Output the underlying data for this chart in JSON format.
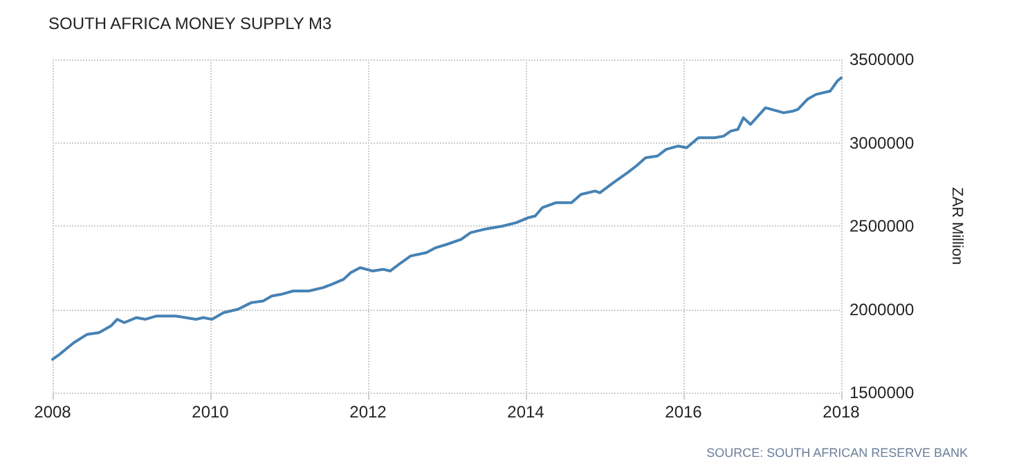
{
  "chart_data": {
    "type": "line",
    "title": "SOUTH AFRICA MONEY SUPPLY M3",
    "ylabel": "ZAR Million",
    "annotations": [
      "SOURCE: SOUTH AFRICAN RESERVE BANK"
    ],
    "x": [
      2008.0,
      2008.09,
      2008.27,
      2008.44,
      2008.59,
      2008.74,
      2008.82,
      2008.91,
      2009.06,
      2009.18,
      2009.32,
      2009.56,
      2009.82,
      2009.91,
      2010.02,
      2010.17,
      2010.35,
      2010.52,
      2010.67,
      2010.78,
      2010.9,
      2011.05,
      2011.25,
      2011.43,
      2011.54,
      2011.69,
      2011.78,
      2011.9,
      2012.06,
      2012.19,
      2012.28,
      2012.42,
      2012.54,
      2012.74,
      2012.86,
      2013.0,
      2013.18,
      2013.3,
      2013.47,
      2013.71,
      2013.88,
      2014.03,
      2014.12,
      2014.21,
      2014.38,
      2014.58,
      2014.7,
      2014.88,
      2014.94,
      2015.11,
      2015.29,
      2015.4,
      2015.52,
      2015.67,
      2015.78,
      2015.93,
      2016.04,
      2016.19,
      2016.4,
      2016.51,
      2016.6,
      2016.69,
      2016.76,
      2016.85,
      2017.04,
      2017.27,
      2017.39,
      2017.45,
      2017.57,
      2017.68,
      2017.86,
      2017.95,
      2018.0
    ],
    "series": [
      {
        "color": "#4682b4",
        "values": [
          1700000,
          1730000,
          1800000,
          1850000,
          1860000,
          1900000,
          1940000,
          1920000,
          1950000,
          1940000,
          1960000,
          1960000,
          1940000,
          1950000,
          1940000,
          1980000,
          2000000,
          2040000,
          2050000,
          2080000,
          2090000,
          2110000,
          2110000,
          2130000,
          2150000,
          2180000,
          2220000,
          2250000,
          2230000,
          2240000,
          2230000,
          2280000,
          2320000,
          2340000,
          2370000,
          2390000,
          2420000,
          2460000,
          2480000,
          2500000,
          2520000,
          2550000,
          2560000,
          2610000,
          2640000,
          2640000,
          2690000,
          2710000,
          2700000,
          2760000,
          2820000,
          2860000,
          2910000,
          2920000,
          2960000,
          2980000,
          2970000,
          3030000,
          3030000,
          3040000,
          3070000,
          3080000,
          3150000,
          3110000,
          3210000,
          3180000,
          3190000,
          3200000,
          3260000,
          3290000,
          3310000,
          3370000,
          3390000
        ]
      }
    ],
    "xlim": [
      2008,
      2018
    ],
    "xticks": [
      2008,
      2010,
      2012,
      2014,
      2016,
      2018
    ],
    "ylim": [
      1500000,
      3500000
    ],
    "yticks": [
      1500000,
      2000000,
      2500000,
      3000000,
      3500000
    ],
    "grid": true,
    "marker": "none",
    "line_style": "solid"
  }
}
